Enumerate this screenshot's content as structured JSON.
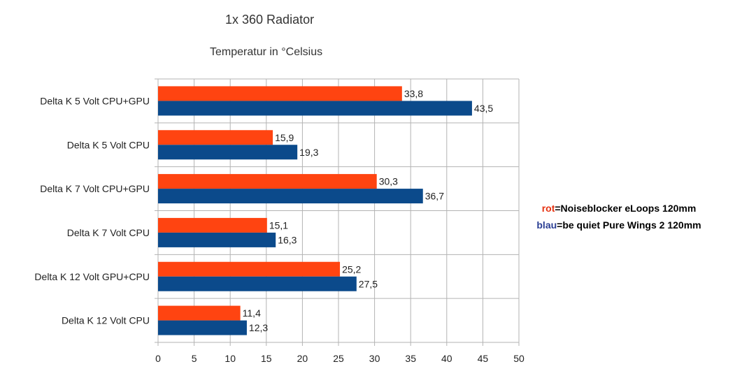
{
  "chart_data": {
    "type": "bar",
    "orientation": "horizontal",
    "title": "1x 360 Radiator",
    "subtitle": "Temperatur in °Celsius",
    "categories": [
      "Delta K 5 Volt CPU+GPU",
      "Delta K 5 Volt CPU",
      "Delta K 7 Volt CPU+GPU",
      "Delta K 7 Volt CPU",
      "Delta K 12 Volt GPU+CPU",
      "Delta K 12 Volt CPU"
    ],
    "series": [
      {
        "color": "#ff4411",
        "values": [
          33.8,
          15.9,
          30.3,
          15.1,
          25.2,
          11.4
        ],
        "labels": [
          "33,8",
          "15,9",
          "30,3",
          "15,1",
          "25,2",
          "11,4"
        ]
      },
      {
        "color": "#0b4a8b",
        "values": [
          43.5,
          19.3,
          36.7,
          16.3,
          27.5,
          12.3
        ],
        "labels": [
          "43,5",
          "19,3",
          "36,7",
          "16,3",
          "27,5",
          "12,3"
        ]
      }
    ],
    "xlim": [
      0,
      50
    ],
    "xticks": [
      0,
      5,
      10,
      15,
      20,
      25,
      30,
      35,
      40,
      45,
      50
    ],
    "grid": true,
    "legend_placement": "right"
  },
  "legend": {
    "red_key": "rot",
    "red_text": "=Noiseblocker eLoops 120mm",
    "blue_key": "blau",
    "blue_text": "=be quiet Pure Wings 2 120mm"
  }
}
